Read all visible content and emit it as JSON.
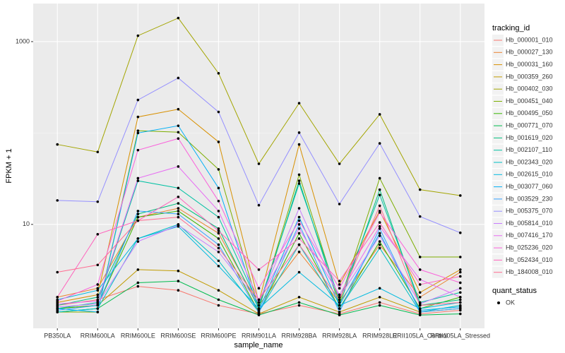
{
  "chart_data": {
    "type": "line",
    "x_label": "sample_name",
    "y_label": "FPKM + 1",
    "log_y": true,
    "grid": true,
    "legend_position": "right",
    "legend_title": "tracking_id",
    "shape_legend": {
      "title": "quant_status",
      "labels": [
        "OK"
      ]
    },
    "categories": [
      "PB350LA",
      "RRIM600LA",
      "RRIM600LE",
      "RRIM600SE",
      "RRIM600PE",
      "RRIM901LA",
      "RRIM928BA",
      "RRIM928LA",
      "RRIM928LE",
      "RRII105LA_Control",
      "RRII105LA_Stressed"
    ],
    "ylim": [
      0.73,
      2610
    ],
    "yticks": [
      10,
      1000
    ],
    "series": [
      {
        "name": "Hb_000001_010",
        "color": "#F8766D",
        "values": [
          1.3,
          1.5,
          2.1,
          1.9,
          1.3,
          1.05,
          1.3,
          1.05,
          1.4,
          1.05,
          1.15
        ]
      },
      {
        "name": "Hb_000027_130",
        "color": "#EA8331",
        "values": [
          1.6,
          2.0,
          12,
          15,
          8,
          1.3,
          5,
          1.4,
          6,
          1.6,
          3.0
        ]
      },
      {
        "name": "Hb_000031_160",
        "color": "#D89000",
        "values": [
          1.4,
          1.7,
          150,
          182,
          80,
          1.4,
          75,
          2.2,
          14,
          1.8,
          3.2
        ]
      },
      {
        "name": "Hb_000359_260",
        "color": "#C09B00",
        "values": [
          1.2,
          1.3,
          3.2,
          3.1,
          1.9,
          1.05,
          1.6,
          1.1,
          1.6,
          1.1,
          1.2
        ]
      },
      {
        "name": "Hb_000402_030",
        "color": "#A3A500",
        "values": [
          75,
          62,
          1160,
          1810,
          450,
          46,
          212,
          46,
          160,
          24,
          20.7
        ]
      },
      {
        "name": "Hb_000451_040",
        "color": "#7CAE00",
        "values": [
          1.1,
          1.1,
          106,
          102,
          40,
          1.2,
          35,
          1.4,
          32,
          4.4,
          4.4
        ]
      },
      {
        "name": "Hb_000495_050",
        "color": "#39B600",
        "values": [
          1.2,
          1.3,
          12,
          14,
          7,
          1.1,
          8,
          1.2,
          6.5,
          1.2,
          1.6
        ]
      },
      {
        "name": "Hb_000771_070",
        "color": "#00BB4E",
        "values": [
          1.1,
          1.2,
          2.3,
          2.4,
          1.5,
          1.02,
          1.4,
          1.02,
          1.3,
          1.02,
          1.05
        ]
      },
      {
        "name": "Hb_001619_020",
        "color": "#00BF7D",
        "values": [
          1.3,
          1.6,
          13,
          17,
          9,
          1.2,
          30,
          1.3,
          24,
          1.3,
          1.5
        ]
      },
      {
        "name": "Hb_002107_110",
        "color": "#00C1A3",
        "values": [
          1.2,
          1.4,
          30,
          25,
          12,
          1.3,
          28,
          1.5,
          21,
          1.4,
          1.8
        ]
      },
      {
        "name": "Hb_002343_020",
        "color": "#00BFC4",
        "values": [
          1.1,
          1.2,
          7,
          10,
          4,
          1.1,
          6,
          1.2,
          5.5,
          1.1,
          1.3
        ]
      },
      {
        "name": "Hb_002615_010",
        "color": "#00BAE0",
        "values": [
          1.5,
          1.9,
          7,
          9.5,
          3.5,
          1.2,
          3.0,
          1.3,
          2.0,
          1.2,
          1.4
        ]
      },
      {
        "name": "Hb_003077_060",
        "color": "#00B0F6",
        "values": [
          1.2,
          1.1,
          100,
          120,
          25,
          1.15,
          12,
          1.3,
          8,
          1.15,
          1.25
        ]
      },
      {
        "name": "Hb_003529_230",
        "color": "#35A2FF",
        "values": [
          1.15,
          1.3,
          14,
          13,
          6,
          1.08,
          10,
          1.1,
          9,
          1.1,
          1.2
        ]
      },
      {
        "name": "Hb_005375_070",
        "color": "#9590FF",
        "values": [
          18.3,
          17.7,
          230,
          400,
          170,
          16.2,
          101,
          16.7,
          77,
          12.2,
          8.1
        ]
      },
      {
        "name": "Hb_005814_010",
        "color": "#C77CFF",
        "values": [
          1.25,
          1.35,
          6.5,
          9.8,
          5,
          1.4,
          15,
          1.6,
          7.5,
          1.35,
          2.0
        ]
      },
      {
        "name": "Hb_007416_170",
        "color": "#E76BF3",
        "values": [
          1.35,
          1.45,
          32,
          43,
          14,
          1.5,
          9,
          1.7,
          9.5,
          2.5,
          1.6
        ]
      },
      {
        "name": "Hb_025236_020",
        "color": "#FA62DB",
        "values": [
          1.45,
          2.2,
          65,
          87,
          18,
          2.0,
          11,
          2.0,
          13.5,
          3.2,
          2.3
        ]
      },
      {
        "name": "Hb_052434_010",
        "color": "#FF62BC",
        "values": [
          1.6,
          7.8,
          11,
          20,
          8.5,
          3.2,
          7,
          2.4,
          10.5,
          2.2,
          2.7
        ]
      },
      {
        "name": "Hb_184008_010",
        "color": "#FF6C91",
        "values": [
          3.0,
          3.6,
          11,
          12,
          5.5,
          1.5,
          6,
          1.5,
          16,
          1.3,
          1.4
        ]
      }
    ]
  }
}
